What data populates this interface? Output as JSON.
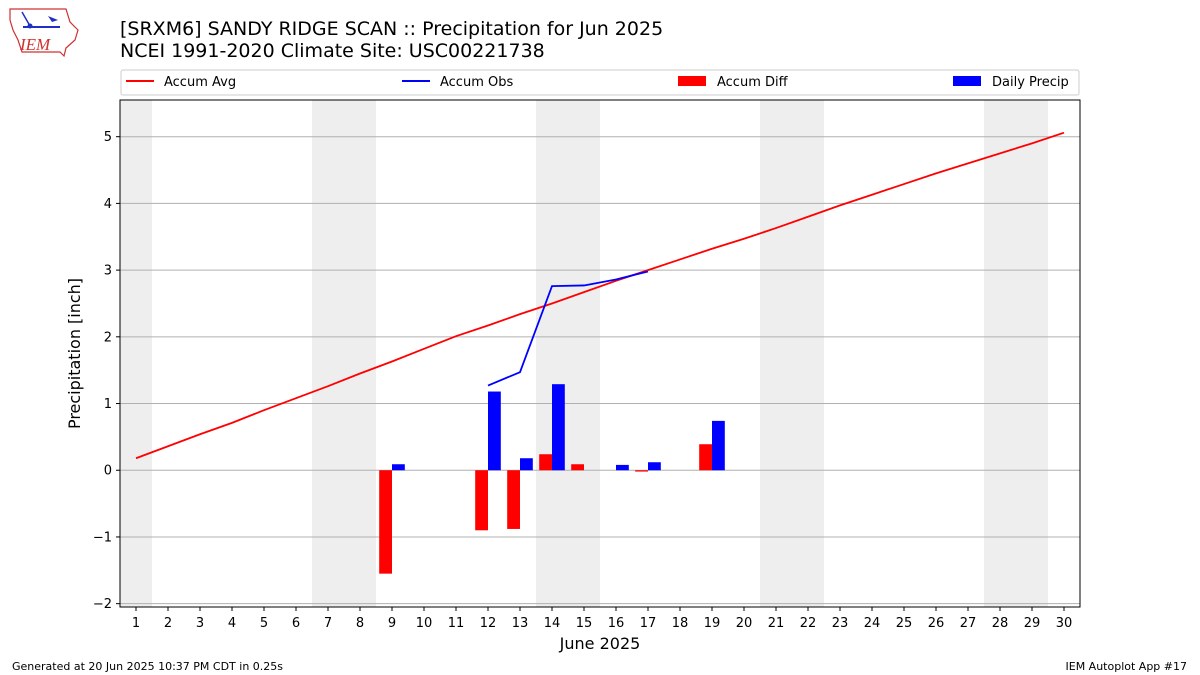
{
  "title_line1": "[SRXM6] SANDY RIDGE SCAN :: Precipitation for Jun 2025",
  "title_line2": "NCEI 1991-2020 Climate Site: USC00221738",
  "logo_text": "IEM",
  "footer_left": "Generated at 20 Jun 2025 10:37 PM CDT in 0.25s",
  "footer_right": "IEM Autoplot App #17",
  "colors": {
    "avg": "#ff0000",
    "obs": "#0000ff",
    "diff": "#ff0000",
    "precip": "#0000ff",
    "weekend": "#eeeeee",
    "grid": "#b0b0b0"
  },
  "chart_data": {
    "type": "bar",
    "xlabel": "June 2025",
    "ylabel": "Precipitation [inch]",
    "xlim": [
      0.5,
      30.5
    ],
    "ylim": [
      -2.05,
      5.55
    ],
    "x_ticks": [
      1,
      2,
      3,
      4,
      5,
      6,
      7,
      8,
      9,
      10,
      11,
      12,
      13,
      14,
      15,
      16,
      17,
      18,
      19,
      20,
      21,
      22,
      23,
      24,
      25,
      26,
      27,
      28,
      29,
      30
    ],
    "y_ticks": [
      -2,
      -1,
      0,
      1,
      2,
      3,
      4,
      5
    ],
    "grid": "horizontal",
    "legend": {
      "placement": "top",
      "entries": [
        {
          "label": "Accum Avg",
          "kind": "line",
          "color": "#ff0000"
        },
        {
          "label": "Accum Obs",
          "kind": "line",
          "color": "#0000ff"
        },
        {
          "label": "Accum Diff",
          "kind": "bar",
          "color": "#ff0000"
        },
        {
          "label": "Daily Precip",
          "kind": "bar",
          "color": "#0000ff"
        }
      ]
    },
    "weekend_shading_days": [
      1,
      7,
      8,
      14,
      15,
      21,
      22,
      28,
      29
    ],
    "series": [
      {
        "name": "Accum Avg",
        "kind": "line",
        "color": "#ff0000",
        "x": [
          1,
          2,
          3,
          4,
          5,
          6,
          7,
          8,
          9,
          10,
          11,
          12,
          13,
          14,
          15,
          16,
          17,
          18,
          19,
          20,
          21,
          22,
          23,
          24,
          25,
          26,
          27,
          28,
          29,
          30
        ],
        "values": [
          0.18,
          0.36,
          0.54,
          0.71,
          0.9,
          1.08,
          1.26,
          1.45,
          1.63,
          1.82,
          2.01,
          2.17,
          2.34,
          2.5,
          2.67,
          2.84,
          3.0,
          3.16,
          3.32,
          3.47,
          3.63,
          3.8,
          3.97,
          4.13,
          4.29,
          4.45,
          4.6,
          4.75,
          4.9,
          5.06
        ]
      },
      {
        "name": "Accum Obs",
        "kind": "line",
        "color": "#0000ff",
        "x": [
          12,
          13,
          14,
          15,
          16,
          17
        ],
        "values": [
          1.27,
          1.47,
          2.76,
          2.77,
          2.86,
          2.98
        ]
      },
      {
        "name": "Accum Diff",
        "kind": "bar",
        "color": "#ff0000",
        "x": [
          9,
          12,
          13,
          14,
          15,
          17,
          19
        ],
        "values": [
          -1.55,
          -0.9,
          -0.88,
          0.24,
          0.09,
          -0.02,
          0.39
        ]
      },
      {
        "name": "Daily Precip",
        "kind": "bar",
        "color": "#0000ff",
        "x": [
          9,
          12,
          13,
          14,
          16,
          17,
          19
        ],
        "values": [
          0.09,
          1.18,
          0.18,
          1.29,
          0.08,
          0.12,
          0.74
        ]
      }
    ]
  }
}
